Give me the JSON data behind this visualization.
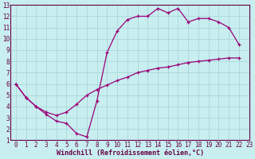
{
  "xlabel": "Windchill (Refroidissement éolien,°C)",
  "bg_color": "#c8eef0",
  "line_color": "#990077",
  "grid_color": "#a8d8d8",
  "line1_x": [
    0,
    1,
    2,
    3,
    4,
    5,
    6,
    7,
    8,
    9,
    10,
    11,
    12,
    13,
    14,
    15,
    16,
    17,
    18,
    19,
    20,
    21,
    22
  ],
  "line1_y": [
    6.0,
    4.8,
    4.0,
    3.3,
    2.7,
    2.5,
    1.6,
    1.3,
    4.5,
    8.8,
    10.7,
    11.7,
    12.0,
    12.0,
    12.7,
    12.3,
    12.7,
    11.5,
    11.8,
    11.8,
    11.5,
    11.0,
    9.5
  ],
  "line2_x": [
    0,
    1,
    2,
    3,
    4,
    5,
    6,
    7,
    8,
    9,
    10,
    11,
    12,
    13,
    14,
    15,
    16,
    17,
    18,
    19,
    20,
    21,
    22
  ],
  "line2_y": [
    6.0,
    4.8,
    4.0,
    3.5,
    3.2,
    3.5,
    4.2,
    5.0,
    5.5,
    5.9,
    6.3,
    6.6,
    7.0,
    7.2,
    7.4,
    7.5,
    7.7,
    7.9,
    8.0,
    8.1,
    8.2,
    8.3,
    8.3
  ],
  "xlim": [
    -0.5,
    23
  ],
  "ylim": [
    1,
    13
  ],
  "xticks": [
    0,
    1,
    2,
    3,
    4,
    5,
    6,
    7,
    8,
    9,
    10,
    11,
    12,
    13,
    14,
    15,
    16,
    17,
    18,
    19,
    20,
    21,
    22,
    23
  ],
  "yticks": [
    1,
    2,
    3,
    4,
    5,
    6,
    7,
    8,
    9,
    10,
    11,
    12,
    13
  ],
  "tick_fontsize": 5.5,
  "label_fontsize": 6.0
}
